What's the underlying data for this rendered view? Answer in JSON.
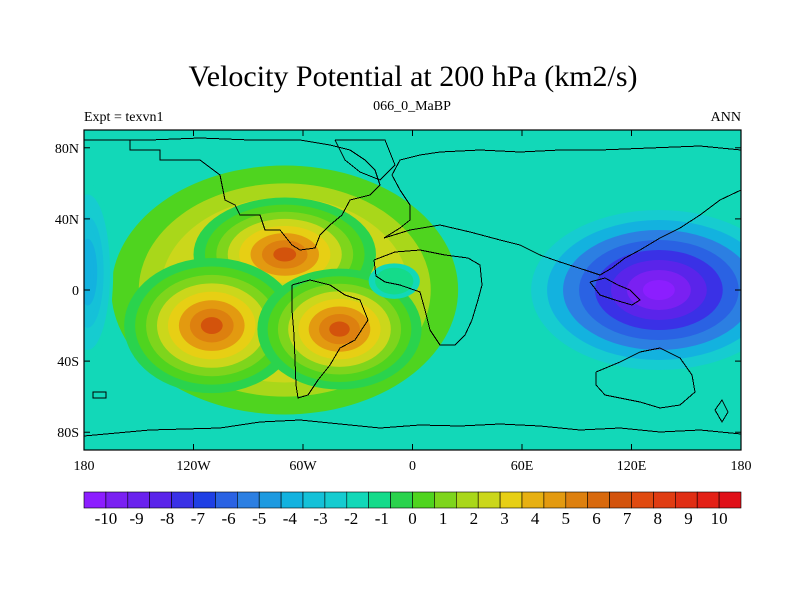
{
  "title": "Velocity Potential at 200 hPa (km2/s)",
  "subtitle_left": "Expt = texvn1",
  "subtitle_center": "066_0_MaBP",
  "subtitle_right": "ANN",
  "x_axis": {
    "range": [
      -180,
      180
    ],
    "ticks": [
      {
        "value": -180,
        "label": "180"
      },
      {
        "value": -120,
        "label": "120W"
      },
      {
        "value": -60,
        "label": "60W"
      },
      {
        "value": 0,
        "label": "0"
      },
      {
        "value": 60,
        "label": "60E"
      },
      {
        "value": 120,
        "label": "120E"
      },
      {
        "value": 180,
        "label": "180"
      }
    ]
  },
  "y_axis": {
    "range": [
      -90,
      90
    ],
    "ticks": [
      {
        "value": 80,
        "label": "80N"
      },
      {
        "value": 40,
        "label": "40N"
      },
      {
        "value": 0,
        "label": "0"
      },
      {
        "value": -40,
        "label": "40S"
      },
      {
        "value": -80,
        "label": "80S"
      }
    ]
  },
  "colorbar": {
    "colors": [
      "#8c1eff",
      "#7a20f2",
      "#6a22ee",
      "#5a24ea",
      "#3a31e6",
      "#1f3fe4",
      "#2a62e3",
      "#2c7fe2",
      "#1e9ae0",
      "#13b2df",
      "#15c1d8",
      "#16ccd0",
      "#12d8b8",
      "#14db8a",
      "#2ad34d",
      "#4fd41f",
      "#7ed51c",
      "#a9d71a",
      "#cbd71b",
      "#e7cf14",
      "#e7b012",
      "#e39a10",
      "#dd800f",
      "#d8690d",
      "#d3530c",
      "#e04a10",
      "#e03c12",
      "#e02e14",
      "#e32016",
      "#e01018"
    ],
    "labels": [
      "-10",
      "-9",
      "-8",
      "-7",
      "-6",
      "-5",
      "-4",
      "-3",
      "-2",
      "-1",
      "0",
      "1",
      "2",
      "3",
      "4",
      "5",
      "6",
      "7",
      "8",
      "9",
      "10"
    ]
  },
  "chart_data": {
    "type": "heatmap",
    "title": "Velocity Potential at 200 hPa (km2/s)",
    "variable": "velocity potential",
    "level_hPa": 200,
    "units": "km2/s",
    "experiment": "texvn1",
    "period": "066_0_MaBP",
    "season": "ANN",
    "color_range": [
      -10,
      10
    ],
    "lon_range": [
      -180,
      180
    ],
    "lat_range": [
      -90,
      90
    ],
    "background_value": -1.5,
    "features": [
      {
        "name": "strong minimum over western Pacific",
        "lon": 135,
        "lat": 0,
        "value": -10
      },
      {
        "name": "maximum over Central America",
        "lon": -70,
        "lat": 20,
        "value": 6
      },
      {
        "name": "maximum over South Pacific off Chile",
        "lon": -110,
        "lat": -20,
        "value": 6
      },
      {
        "name": "maximum over South Atlantic",
        "lon": -40,
        "lat": -22,
        "value": 6
      },
      {
        "name": "local minimum over Gulf of Guinea",
        "lon": -10,
        "lat": 5,
        "value": -1
      },
      {
        "name": "negative region over far eastern Pacific",
        "lon": -178,
        "lat": 10,
        "value": -4
      }
    ]
  }
}
